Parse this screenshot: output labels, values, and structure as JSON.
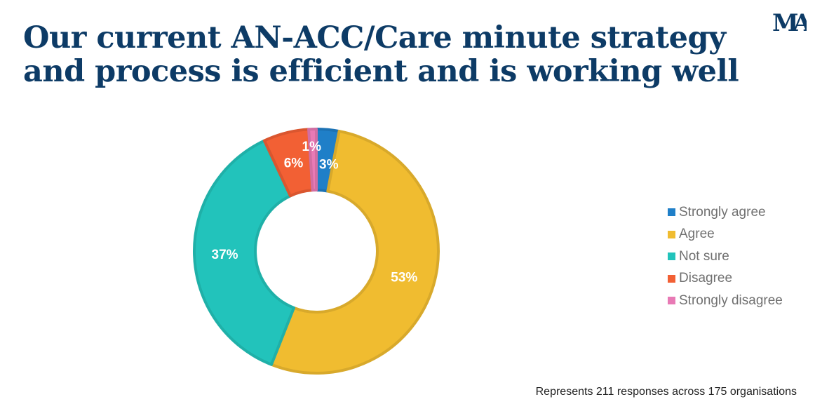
{
  "title": "Our current AN-ACC/Care minute strategy and process is efficient and is working well",
  "logo": {
    "text": "MA",
    "color": "#0d3b66"
  },
  "footnote": "Represents 211 responses across 175 organisations",
  "chart_data": {
    "type": "pie",
    "variant": "donut",
    "title": "Our current AN-ACC/Care minute strategy and process is efficient and is working well",
    "categories": [
      "Strongly agree",
      "Agree",
      "Not sure",
      "Disagree",
      "Strongly disagree"
    ],
    "values": [
      3,
      53,
      37,
      6,
      1
    ],
    "labels": [
      "3%",
      "53%",
      "37%",
      "6%",
      "1%"
    ],
    "colors": [
      "#1f7fc8",
      "#f0bc30",
      "#22c3bb",
      "#f26034",
      "#e87ab5"
    ],
    "start": "top",
    "direction": "clockwise",
    "legend_position": "right"
  }
}
